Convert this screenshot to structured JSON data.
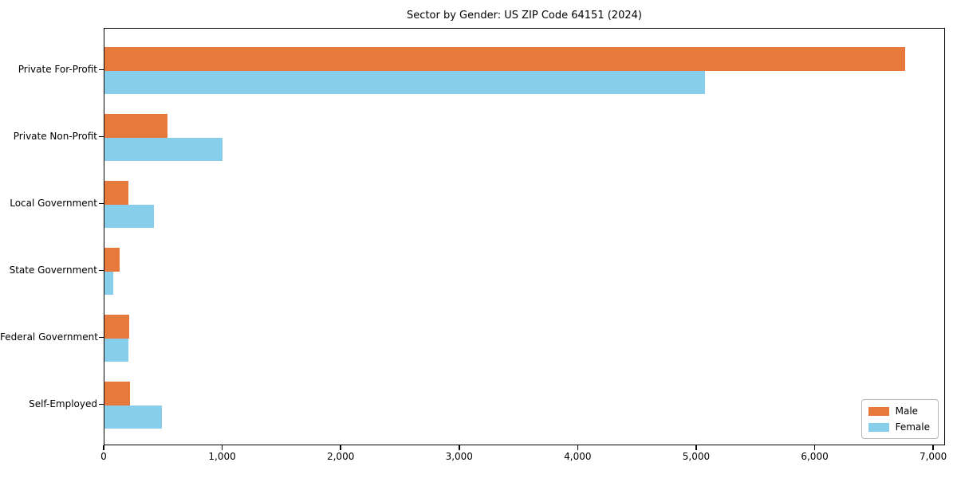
{
  "chart_data": {
    "type": "bar",
    "orientation": "horizontal",
    "title": "Sector by Gender: US ZIP Code 64151 (2024)",
    "categories": [
      "Private For-Profit",
      "Private Non-Profit",
      "Local Government",
      "State Government",
      "Federal Government",
      "Self-Employed"
    ],
    "series": [
      {
        "name": "Male",
        "color": "#E8793D",
        "values": [
          6770,
          535,
          205,
          130,
          210,
          215
        ]
      },
      {
        "name": "Female",
        "color": "#87CEEB",
        "values": [
          5075,
          1000,
          420,
          75,
          205,
          485
        ]
      }
    ],
    "xlim": [
      0,
      7100
    ],
    "x_ticks": [
      0,
      1000,
      2000,
      3000,
      4000,
      5000,
      6000,
      7000
    ],
    "x_tick_labels": [
      "0",
      "1,000",
      "2,000",
      "3,000",
      "4,000",
      "5,000",
      "6,000",
      "7,000"
    ],
    "xlabel": "",
    "ylabel": "",
    "grid": false,
    "legend_position": "lower right",
    "axis_color": "#000000",
    "background_color": "#FFFFFF"
  }
}
